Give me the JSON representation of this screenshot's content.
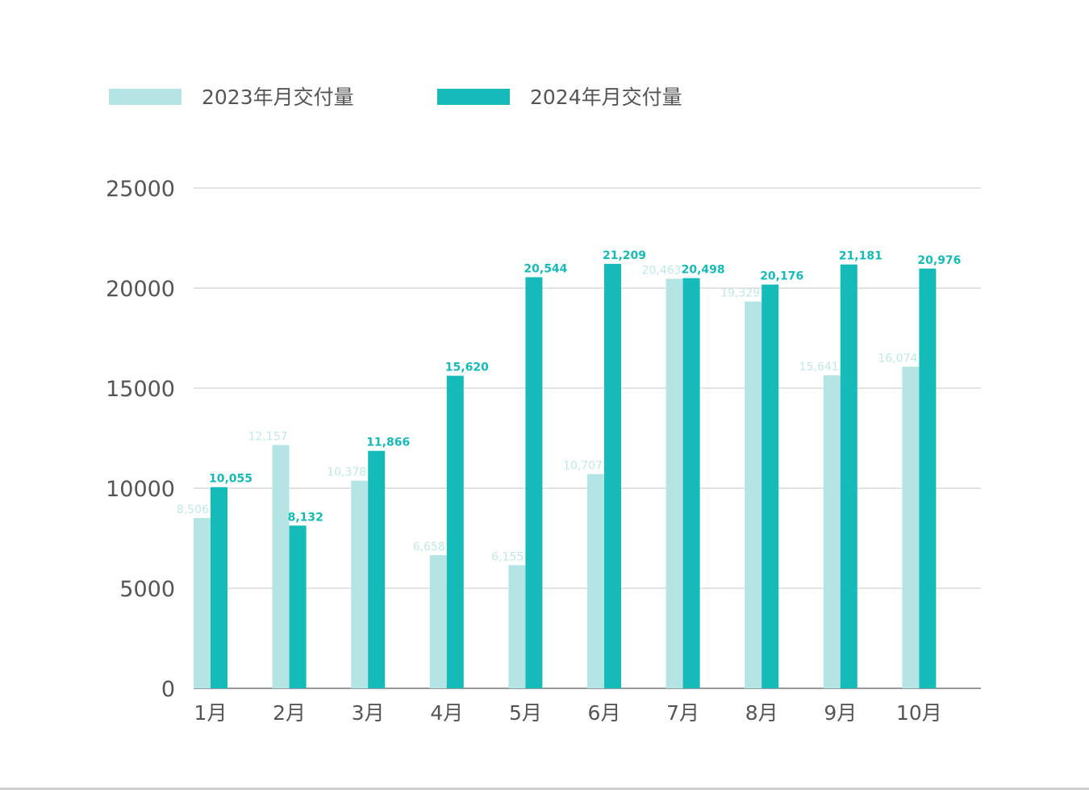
{
  "chart_data": {
    "type": "bar",
    "title": "",
    "xlabel": "",
    "ylabel": "",
    "categories": [
      "1月",
      "2月",
      "3月",
      "4月",
      "5月",
      "6月",
      "7月",
      "8月",
      "9月",
      "10月"
    ],
    "series": [
      {
        "name": "2023年月交付量",
        "color": "#b4e5e4",
        "values": [
          8506,
          12157,
          10378,
          6658,
          6155,
          10707,
          20463,
          19329,
          15641,
          16074
        ],
        "labels": [
          "8,506",
          "12,157",
          "10,378",
          "6,658",
          "6,155",
          "10,707",
          "20,463",
          "19,329",
          "15,641",
          "16,074"
        ]
      },
      {
        "name": "2024年月交付量",
        "color": "#14bbb9",
        "values": [
          10055,
          8132,
          11866,
          15620,
          20544,
          21209,
          20498,
          20176,
          21181,
          20976
        ],
        "labels": [
          "10,055",
          "8,132",
          "11,866",
          "15,620",
          "20,544",
          "21,209",
          "20,498",
          "20,176",
          "21,181",
          "20,976"
        ]
      }
    ],
    "yticks": [
      "0",
      "5000",
      "10000",
      "15000",
      "20000",
      "25000"
    ],
    "ylim": [
      0,
      25000
    ],
    "grid": true,
    "legend_position": "top-left"
  }
}
